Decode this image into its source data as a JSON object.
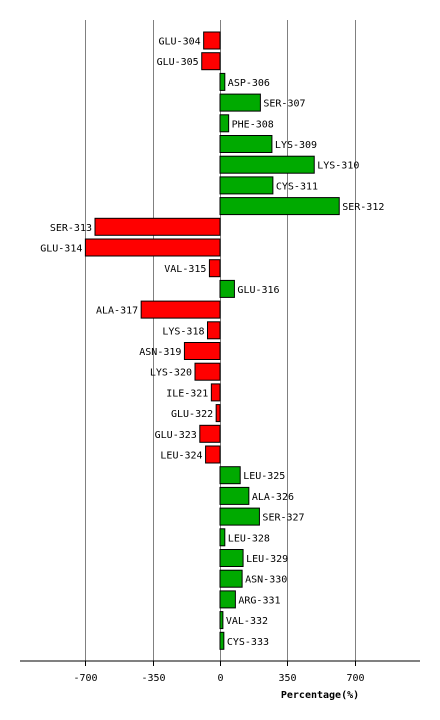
{
  "chart_data": {
    "type": "bar",
    "orientation": "horizontal",
    "xlabel": "Percentage(%)",
    "xlim": [
      -1040,
      1040
    ],
    "xticks": [
      -700,
      -350,
      0,
      350,
      700
    ],
    "xtick_labels": [
      "-700",
      "-350",
      "0",
      "350",
      "700"
    ],
    "grid": true,
    "colors": {
      "positive": "#00aa00",
      "negative": "#ff0000",
      "grid": "#808080"
    },
    "categories": [
      "GLU-304",
      "GLU-305",
      "ASP-306",
      "SER-307",
      "PHE-308",
      "LYS-309",
      "LYS-310",
      "CYS-311",
      "SER-312",
      "SER-313",
      "GLU-314",
      "VAL-315",
      "GLU-316",
      "ALA-317",
      "LYS-318",
      "ASN-319",
      "LYS-320",
      "ILE-321",
      "GLU-322",
      "GLU-323",
      "LEU-324",
      "LEU-325",
      "ALA-326",
      "SER-327",
      "LEU-328",
      "LEU-329",
      "ASN-330",
      "ARG-331",
      "VAL-332",
      "CYS-333"
    ],
    "values": [
      -85,
      -95,
      25,
      210,
      45,
      270,
      490,
      275,
      620,
      -650,
      -700,
      -55,
      75,
      -410,
      -65,
      -185,
      -130,
      -45,
      -20,
      -105,
      -75,
      105,
      150,
      205,
      25,
      120,
      115,
      80,
      15,
      20
    ]
  }
}
